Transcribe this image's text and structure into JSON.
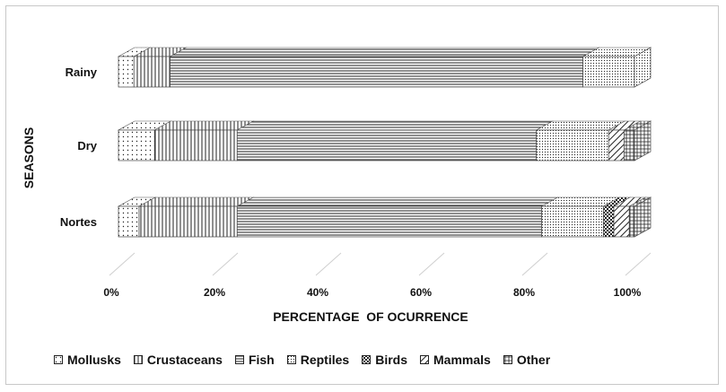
{
  "chart_data": {
    "type": "bar",
    "orientation": "horizontal",
    "stacked": "100%",
    "style": "3d",
    "ylabel": "SEASONS",
    "xlabel": "PERCENTAGE  OF OCURRENCE",
    "x_ticks": [
      "0%",
      "20%",
      "40%",
      "60%",
      "80%",
      "100%"
    ],
    "xlim": [
      0,
      100
    ],
    "legend_position": "bottom",
    "grid": false,
    "categories": [
      "Rainy",
      "Dry",
      "Nortes"
    ],
    "series": [
      {
        "name": "Mollusks",
        "pattern": "dots",
        "values": [
          3,
          7,
          4
        ]
      },
      {
        "name": "Crustaceans",
        "pattern": "vlines",
        "values": [
          7,
          16,
          19
        ]
      },
      {
        "name": "Fish",
        "pattern": "hlines",
        "values": [
          80,
          58,
          59
        ]
      },
      {
        "name": "Reptiles",
        "pattern": "dots-dense",
        "values": [
          10,
          14,
          12
        ]
      },
      {
        "name": "Birds",
        "pattern": "checker",
        "values": [
          0,
          0,
          2
        ]
      },
      {
        "name": "Mammals",
        "pattern": "diag",
        "values": [
          0,
          3,
          3
        ]
      },
      {
        "name": "Other",
        "pattern": "grid",
        "values": [
          0,
          2,
          1
        ]
      }
    ]
  }
}
